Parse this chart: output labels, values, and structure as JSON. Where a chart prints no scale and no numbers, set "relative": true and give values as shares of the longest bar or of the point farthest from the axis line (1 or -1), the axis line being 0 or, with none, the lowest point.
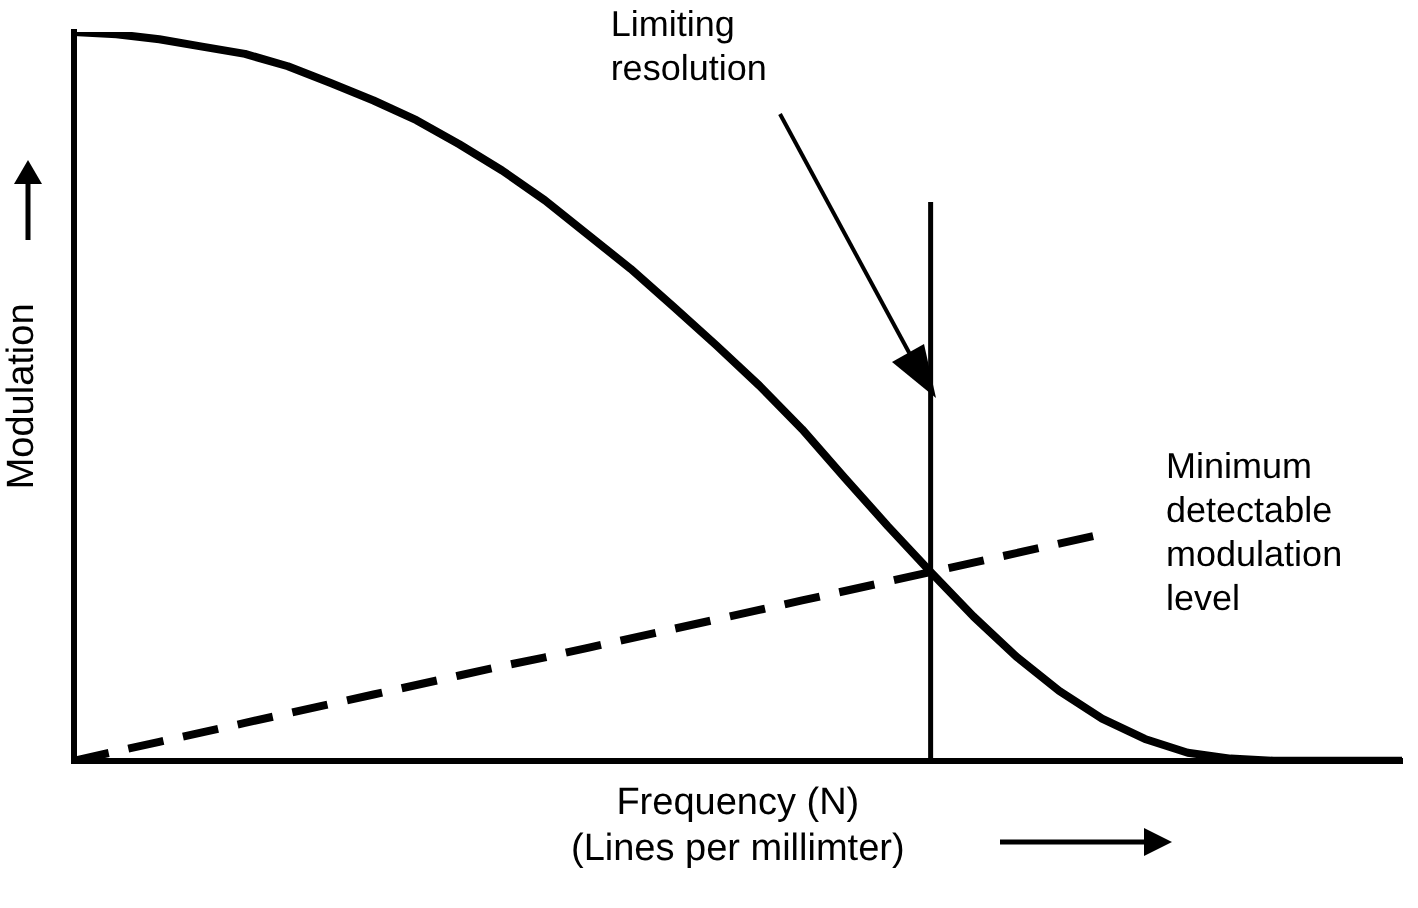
{
  "chart_data": {
    "type": "line",
    "relative": true,
    "xlabel": "Frequency (N)\n(Lines per millimter)",
    "ylabel": "Modulation",
    "categories": [
      null,
      null,
      null,
      null,
      null,
      null,
      null,
      null,
      null,
      null,
      null,
      null,
      null,
      null,
      null,
      null,
      null,
      null,
      null,
      null,
      null,
      null,
      null,
      null,
      null,
      null,
      null,
      null,
      null,
      null,
      null,
      null
    ],
    "series": [
      {
        "color": "#000000",
        "line_style": "solid",
        "values": [
          1.0,
          0.997,
          0.99,
          0.98,
          0.97,
          0.953,
          0.93,
          0.906,
          0.879,
          0.846,
          0.81,
          0.769,
          0.722,
          0.675,
          0.623,
          0.57,
          0.515,
          0.455,
          0.388,
          0.322,
          0.259,
          0.198,
          0.143,
          0.096,
          0.058,
          0.03,
          0.011,
          0.003,
          0,
          0,
          0,
          0
        ]
      },
      {
        "name": "Minimum detectable modulation level",
        "color": "#000000",
        "line_style": "dashed",
        "values": [
          0,
          0.013,
          0.026,
          0.039,
          0.052,
          0.065,
          0.078,
          0.091,
          0.104,
          0.117,
          0.13,
          0.142,
          0.155,
          0.168,
          0.181,
          0.194,
          0.207,
          0.22,
          0.233,
          0.246,
          0.259,
          0.272,
          0.285,
          0.298,
          0.311,
          null,
          null,
          null,
          null,
          null,
          null,
          null
        ]
      }
    ],
    "annotations": [
      "Limiting resolution"
    ],
    "marker": "none",
    "grid": false,
    "legend": false,
    "tick_labels": false
  }
}
